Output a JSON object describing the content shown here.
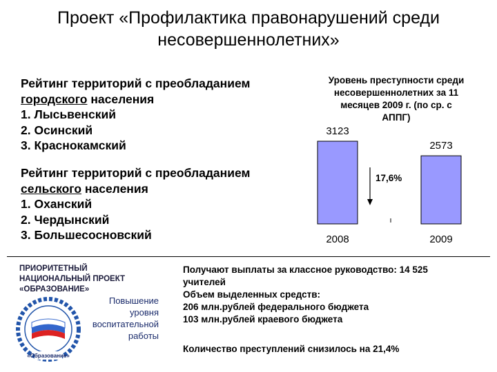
{
  "title": {
    "line1": "Проект «Профилактика правонарушений среди",
    "line2": "несовершеннолетних»"
  },
  "ranking_urban": {
    "heading_pre": "Рейтинг территорий с преобладанием",
    "heading_underlined": "городского",
    "heading_post": " населения",
    "items": [
      "1. Лысьвенский",
      "2. Осинский",
      "3. Краснокамский"
    ]
  },
  "ranking_rural": {
    "heading_pre": "Рейтинг территорий с преобладанием",
    "heading_underlined": "сельского",
    "heading_post": " населения",
    "items": [
      "1. Оханский",
      "2. Чердынский",
      "3. Большесосновский"
    ]
  },
  "chart_data": {
    "type": "bar",
    "title_lines": [
      "Уровень преступности среди",
      "несовершеннолетних за 11",
      "месяцев 2009 г. (по ср. с",
      "АППГ)"
    ],
    "categories": [
      "2008",
      "2009"
    ],
    "values": [
      3123,
      2573
    ],
    "data_labels": [
      "3123",
      "2573"
    ],
    "ylim": [
      0,
      3123
    ],
    "annotation": "17,6%",
    "bar_color": "#9999ff"
  },
  "priority_project": {
    "lines": [
      "ПРИОРИТЕТНЫЙ",
      "НАЦИОНАЛЬНЫЙ ПРОЕКТ",
      "«ОБРАЗОВАНИЕ»"
    ],
    "logo_text": "«Образование»",
    "caption_lines": [
      "Повышение",
      "уровня",
      "воспитательной",
      "работы"
    ]
  },
  "info": {
    "lines": [
      "Получают выплаты за классное руководство: 14 525",
      "учителей",
      "Объем выделенных средств:",
      "206 млн.рублей федерального бюджета",
      "103 млн.рублей краевого бюджета"
    ],
    "result": "Количество преступлений снизилось на 21,4%"
  }
}
